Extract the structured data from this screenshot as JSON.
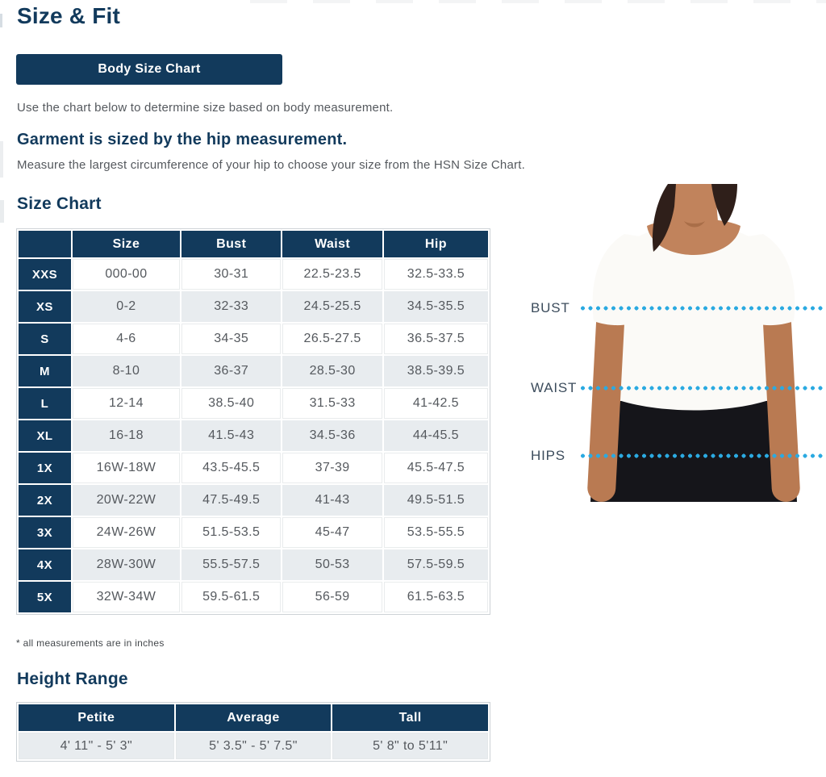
{
  "header": {
    "title": "Size & Fit",
    "tab_label": "Body Size Chart"
  },
  "intro_text": "Use the chart below to determine size based on body measurement.",
  "garment": {
    "heading": "Garment is sized by the hip measurement.",
    "body": "Measure the largest circumference of your hip to choose your size from the HSN Size Chart."
  },
  "size_chart": {
    "heading": "Size Chart",
    "columns": [
      "",
      "Size",
      "Bust",
      "Waist",
      "Hip"
    ],
    "rows": [
      {
        "label": "XXS",
        "size": "000-00",
        "bust": "30-31",
        "waist": "22.5-23.5",
        "hip": "32.5-33.5"
      },
      {
        "label": "XS",
        "size": "0-2",
        "bust": "32-33",
        "waist": "24.5-25.5",
        "hip": "34.5-35.5"
      },
      {
        "label": "S",
        "size": "4-6",
        "bust": "34-35",
        "waist": "26.5-27.5",
        "hip": "36.5-37.5"
      },
      {
        "label": "M",
        "size": "8-10",
        "bust": "36-37",
        "waist": "28.5-30",
        "hip": "38.5-39.5"
      },
      {
        "label": "L",
        "size": "12-14",
        "bust": "38.5-40",
        "waist": "31.5-33",
        "hip": "41-42.5"
      },
      {
        "label": "XL",
        "size": "16-18",
        "bust": "41.5-43",
        "waist": "34.5-36",
        "hip": "44-45.5"
      },
      {
        "label": "1X",
        "size": "16W-18W",
        "bust": "43.5-45.5",
        "waist": "37-39",
        "hip": "45.5-47.5"
      },
      {
        "label": "2X",
        "size": "20W-22W",
        "bust": "47.5-49.5",
        "waist": "41-43",
        "hip": "49.5-51.5"
      },
      {
        "label": "3X",
        "size": "24W-26W",
        "bust": "51.5-53.5",
        "waist": "45-47",
        "hip": "53.5-55.5"
      },
      {
        "label": "4X",
        "size": "28W-30W",
        "bust": "55.5-57.5",
        "waist": "50-53",
        "hip": "57.5-59.5"
      },
      {
        "label": "5X",
        "size": "32W-34W",
        "bust": "59.5-61.5",
        "waist": "56-59",
        "hip": "61.5-63.5"
      }
    ],
    "footnote": "* all measurements are in inches"
  },
  "height_range": {
    "heading": "Height Range",
    "columns": [
      "Petite",
      "Average",
      "Tall"
    ],
    "values": [
      "4' 11\" - 5' 3\"",
      "5' 3.5\" - 5' 7.5\"",
      "5' 8\" to 5'11\""
    ]
  },
  "figure": {
    "labels": [
      "BUST",
      "WAIST",
      "HIPS"
    ]
  },
  "colors": {
    "navy": "#123a5c",
    "dot_blue": "#2baae1",
    "row_alt": "#e8ecef",
    "text_gray": "#55595e",
    "label_gray": "#3c4c5c"
  }
}
